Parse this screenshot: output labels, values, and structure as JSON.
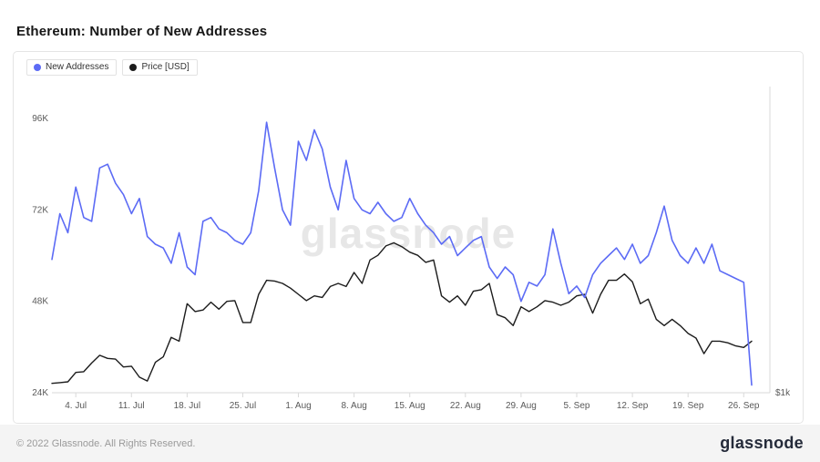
{
  "page": {
    "title": "Ethereum: Number of New Addresses"
  },
  "legend": {
    "items": [
      {
        "label": "New Addresses",
        "color": "#5c6bf5"
      },
      {
        "label": "Price [USD]",
        "color": "#1c1c1c"
      }
    ]
  },
  "watermark": "glassnode",
  "footer": {
    "copyright": "© 2022 Glassnode. All Rights Reserved.",
    "logo": "glassnode"
  },
  "chart_data": {
    "type": "line",
    "title": "Ethereum: Number of New Addresses",
    "grid": false,
    "legend_position": "top-left",
    "x_tick_labels": [
      "4. Jul",
      "11. Jul",
      "18. Jul",
      "25. Jul",
      "1. Aug",
      "8. Aug",
      "15. Aug",
      "22. Aug",
      "29. Aug",
      "5. Sep",
      "12. Sep",
      "19. Sep",
      "26. Sep"
    ],
    "x_tick_day_index": [
      3,
      10,
      17,
      24,
      31,
      38,
      45,
      52,
      59,
      66,
      73,
      80,
      87
    ],
    "x_points": 89,
    "y_axis_left": {
      "label_series": "New Addresses",
      "tick_labels": [
        "96K",
        "72K",
        "48K",
        "24K"
      ],
      "tick_values_k": [
        96,
        72,
        48,
        24
      ],
      "min_k": 24,
      "max_k": 96
    },
    "y_axis_right": {
      "label_series": "Price [USD]",
      "tick_labels": [
        "$1k"
      ],
      "usd_ref": 1000,
      "k_ref": 24,
      "k_per_usd": 0.041
    },
    "series": [
      {
        "name": "New Addresses",
        "color": "#5c6bf5",
        "unit": "thousands of addresses",
        "values_k": [
          59,
          71,
          66,
          78,
          70,
          69,
          83,
          84,
          79,
          76,
          71,
          75,
          65,
          63,
          62,
          58,
          66,
          57,
          55,
          69,
          70,
          67,
          66,
          64,
          63,
          66,
          77,
          95,
          83,
          72,
          68,
          90,
          85,
          93,
          88,
          78,
          72,
          85,
          75,
          72,
          71,
          74,
          71,
          69,
          70,
          75,
          71,
          68,
          66,
          63,
          65,
          60,
          62,
          64,
          65,
          57,
          54,
          57,
          55,
          48,
          53,
          52,
          55,
          67,
          58,
          50,
          52,
          49,
          55,
          58,
          60,
          62,
          59,
          63,
          58,
          60,
          66,
          73,
          64,
          60,
          58,
          62,
          58,
          63,
          56,
          55,
          54,
          53,
          26
        ]
      },
      {
        "name": "Price [USD]",
        "color": "#1c1c1c",
        "unit": "USD",
        "values_usd": [
          1060,
          1065,
          1070,
          1130,
          1135,
          1190,
          1240,
          1220,
          1215,
          1165,
          1170,
          1100,
          1075,
          1195,
          1230,
          1355,
          1330,
          1570,
          1520,
          1530,
          1580,
          1535,
          1585,
          1590,
          1450,
          1450,
          1630,
          1720,
          1715,
          1700,
          1670,
          1630,
          1590,
          1620,
          1610,
          1680,
          1700,
          1680,
          1770,
          1700,
          1850,
          1880,
          1940,
          1960,
          1935,
          1900,
          1880,
          1835,
          1850,
          1620,
          1580,
          1620,
          1560,
          1650,
          1660,
          1700,
          1500,
          1480,
          1430,
          1550,
          1520,
          1550,
          1590,
          1580,
          1560,
          1580,
          1620,
          1630,
          1510,
          1630,
          1720,
          1720,
          1760,
          1710,
          1570,
          1600,
          1470,
          1430,
          1470,
          1430,
          1380,
          1350,
          1250,
          1330,
          1330,
          1320,
          1300,
          1290,
          1330
        ]
      }
    ]
  }
}
